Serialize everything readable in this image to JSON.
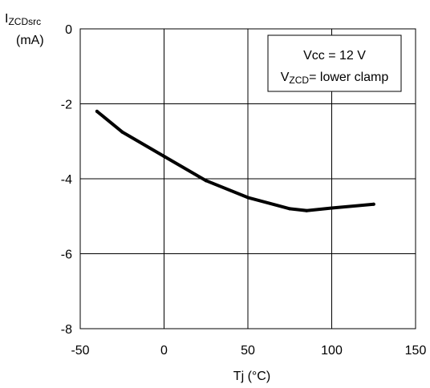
{
  "chart_data": {
    "type": "line",
    "ylabel_main": "I",
    "ylabel_sub": "ZCDsrc",
    "ylabel_unit": "(mA)",
    "xlabel": "Tj  (°C)",
    "xlim": [
      -50,
      150
    ],
    "ylim": [
      -8,
      0
    ],
    "xticks": [
      -50,
      0,
      50,
      100,
      150
    ],
    "yticks": [
      0,
      -2,
      -4,
      -6,
      -8
    ],
    "grid": true,
    "annotation": {
      "line1": "Vcc = 12 V",
      "line2_main": "V",
      "line2_sub": "ZCD",
      "line2_rest": "= lower clamp"
    },
    "series": [
      {
        "x": [
          -40,
          -25,
          0,
          25,
          50,
          75,
          85,
          100,
          125
        ],
        "y": [
          -2.2,
          -2.75,
          -3.4,
          -4.05,
          -4.5,
          -4.8,
          -4.85,
          -4.78,
          -4.68
        ]
      }
    ],
    "colors": {
      "line": "#000000",
      "grid": "#000000",
      "background": "#ffffff"
    }
  }
}
